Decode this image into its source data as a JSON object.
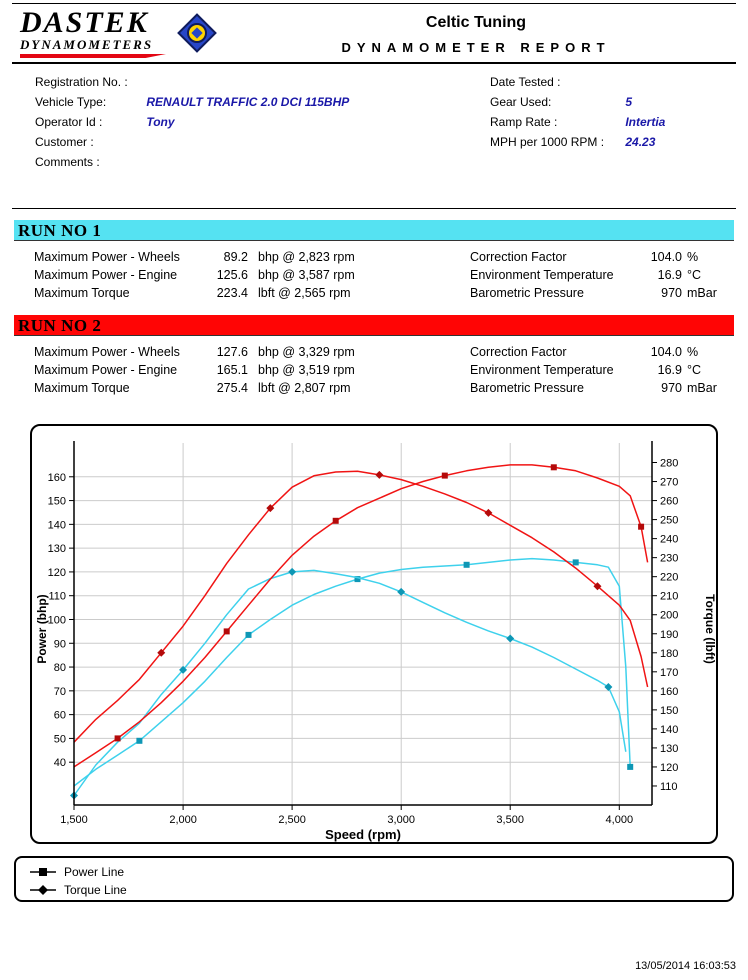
{
  "header": {
    "logo_text": "DASTEK",
    "logo_subtext": "DYNAMOMETERS",
    "company": "Celtic Tuning",
    "report_title": "DYNAMOMETER REPORT"
  },
  "info": {
    "left": [
      {
        "label": "Registration No. :",
        "value": ""
      },
      {
        "label": "Vehicle Type:",
        "value": "RENAULT TRAFFIC 2.0 DCI 115BHP"
      },
      {
        "label": "Operator Id :",
        "value": "Tony"
      },
      {
        "label": "Customer :",
        "value": ""
      },
      {
        "label": "Comments :",
        "value": ""
      }
    ],
    "right": [
      {
        "label": "Date Tested :",
        "value": ""
      },
      {
        "label": "Gear Used:",
        "value": "5"
      },
      {
        "label": "Ramp Rate :",
        "value": "Intertia"
      },
      {
        "label": "MPH per 1000 RPM :",
        "value": "24.23"
      }
    ]
  },
  "runs": [
    {
      "title": "RUN NO 1",
      "banner_color": "#55e2f2",
      "stats": [
        {
          "label": "Maximum Power - Wheels",
          "value": "89.2",
          "unit": "bhp @ 2,823 rpm"
        },
        {
          "label": "Maximum Power - Engine",
          "value": "125.6",
          "unit": "bhp @ 3,587 rpm"
        },
        {
          "label": "Maximum Torque",
          "value": "223.4",
          "unit": "lbft @ 2,565 rpm"
        }
      ],
      "conditions": [
        {
          "label": "Correction Factor",
          "value": "104.0",
          "unit": "%"
        },
        {
          "label": "Environment Temperature",
          "value": "16.9",
          "unit": "°C"
        },
        {
          "label": "Barometric Pressure",
          "value": "970",
          "unit": "mBar"
        }
      ]
    },
    {
      "title": "RUN NO 2",
      "banner_color": "#ff0505",
      "stats": [
        {
          "label": "Maximum Power - Wheels",
          "value": "127.6",
          "unit": "bhp @ 3,329 rpm"
        },
        {
          "label": "Maximum Power - Engine",
          "value": "165.1",
          "unit": "bhp @ 3,519 rpm"
        },
        {
          "label": "Maximum Torque",
          "value": "275.4",
          "unit": "lbft @ 2,807 rpm"
        }
      ],
      "conditions": [
        {
          "label": "Correction Factor",
          "value": "104.0",
          "unit": "%"
        },
        {
          "label": "Environment Temperature",
          "value": "16.9",
          "unit": "°C"
        },
        {
          "label": "Barometric Pressure",
          "value": "970",
          "unit": "mBar"
        }
      ]
    }
  ],
  "chart_data": {
    "type": "line",
    "xlabel": "Speed (rpm)",
    "ylabel_left": "Power (bhp)",
    "ylabel_right": "Torque (lbft)",
    "grid": true,
    "x_range": [
      1500,
      4150
    ],
    "x_ticks": [
      {
        "v": 1500,
        "label": "1,500"
      },
      {
        "v": 2000,
        "label": "2,000"
      },
      {
        "v": 2500,
        "label": "2,500"
      },
      {
        "v": 3000,
        "label": "3,000"
      },
      {
        "v": 3500,
        "label": "3,500"
      },
      {
        "v": 4000,
        "label": "4,000"
      }
    ],
    "power_axis": {
      "range": [
        22,
        170
      ],
      "ticks": [
        40,
        50,
        60,
        70,
        80,
        90,
        100,
        110,
        120,
        130,
        140,
        150,
        160
      ]
    },
    "torque_axis": {
      "range": [
        100,
        285
      ],
      "ticks": [
        110,
        120,
        130,
        140,
        150,
        160,
        170,
        180,
        190,
        200,
        210,
        220,
        230,
        240,
        250,
        260,
        270,
        280
      ]
    },
    "series": [
      {
        "name": "Run 1 Power",
        "run": 1,
        "quantity": "power",
        "color": "#3ed1ec",
        "marker": "square",
        "marker_color": "#0e97b5",
        "marker_every": 5,
        "marker_offset": 3,
        "points": [
          [
            1500,
            30
          ],
          [
            1600,
            37
          ],
          [
            1700,
            43
          ],
          [
            1800,
            49
          ],
          [
            1900,
            57
          ],
          [
            2000,
            65
          ],
          [
            2100,
            74
          ],
          [
            2200,
            84
          ],
          [
            2300,
            93.5
          ],
          [
            2400,
            100
          ],
          [
            2500,
            106
          ],
          [
            2600,
            110.5
          ],
          [
            2700,
            114
          ],
          [
            2800,
            117
          ],
          [
            2900,
            119.5
          ],
          [
            3000,
            121
          ],
          [
            3100,
            122
          ],
          [
            3200,
            122.5
          ],
          [
            3300,
            123
          ],
          [
            3400,
            124
          ],
          [
            3500,
            125
          ],
          [
            3600,
            125.6
          ],
          [
            3700,
            125
          ],
          [
            3800,
            124
          ],
          [
            3900,
            123
          ],
          [
            3950,
            122
          ],
          [
            4000,
            114
          ],
          [
            4030,
            80
          ],
          [
            4050,
            38
          ]
        ]
      },
      {
        "name": "Run 1 Torque",
        "run": 1,
        "quantity": "torque",
        "color": "#3ed1ec",
        "marker": "diamond",
        "marker_color": "#0e97b5",
        "marker_every": 5,
        "marker_offset": 0,
        "points": [
          [
            1500,
            105
          ],
          [
            1600,
            121
          ],
          [
            1700,
            133
          ],
          [
            1800,
            143
          ],
          [
            1900,
            158
          ],
          [
            2000,
            171
          ],
          [
            2100,
            185
          ],
          [
            2200,
            200
          ],
          [
            2300,
            213.5
          ],
          [
            2400,
            219
          ],
          [
            2500,
            222.5
          ],
          [
            2600,
            223.3
          ],
          [
            2700,
            221.5
          ],
          [
            2800,
            219.5
          ],
          [
            2900,
            216.5
          ],
          [
            3000,
            212
          ],
          [
            3100,
            206.5
          ],
          [
            3200,
            201
          ],
          [
            3300,
            196
          ],
          [
            3400,
            191.5
          ],
          [
            3500,
            187.5
          ],
          [
            3600,
            183
          ],
          [
            3700,
            177.5
          ],
          [
            3800,
            171.5
          ],
          [
            3900,
            165.5
          ],
          [
            3950,
            162
          ],
          [
            4000,
            149
          ],
          [
            4030,
            128
          ]
        ]
      },
      {
        "name": "Run 2 Power",
        "run": 2,
        "quantity": "power",
        "color": "#f01414",
        "marker": "square",
        "marker_color": "#b40a0a",
        "marker_every": 5,
        "marker_offset": 2,
        "points": [
          [
            1500,
            38
          ],
          [
            1600,
            44
          ],
          [
            1700,
            50
          ],
          [
            1800,
            57
          ],
          [
            1900,
            65
          ],
          [
            2000,
            74
          ],
          [
            2100,
            84
          ],
          [
            2200,
            95
          ],
          [
            2300,
            106
          ],
          [
            2400,
            117
          ],
          [
            2500,
            127
          ],
          [
            2600,
            135
          ],
          [
            2700,
            141.5
          ],
          [
            2800,
            147
          ],
          [
            2900,
            151
          ],
          [
            3000,
            155
          ],
          [
            3100,
            158
          ],
          [
            3200,
            160.5
          ],
          [
            3300,
            162.5
          ],
          [
            3400,
            164
          ],
          [
            3500,
            165
          ],
          [
            3600,
            165
          ],
          [
            3700,
            164
          ],
          [
            3800,
            162.5
          ],
          [
            3900,
            159.5
          ],
          [
            4000,
            156
          ],
          [
            4050,
            152
          ],
          [
            4100,
            139
          ],
          [
            4130,
            124
          ]
        ]
      },
      {
        "name": "Run 2 Torque",
        "run": 2,
        "quantity": "torque",
        "color": "#f01414",
        "marker": "diamond",
        "marker_color": "#b40a0a",
        "marker_every": 5,
        "marker_offset": 4,
        "points": [
          [
            1500,
            133
          ],
          [
            1600,
            145
          ],
          [
            1700,
            155
          ],
          [
            1800,
            166
          ],
          [
            1900,
            180
          ],
          [
            2000,
            194
          ],
          [
            2100,
            210
          ],
          [
            2200,
            227
          ],
          [
            2300,
            242
          ],
          [
            2400,
            256
          ],
          [
            2500,
            267
          ],
          [
            2600,
            273
          ],
          [
            2700,
            275
          ],
          [
            2800,
            275.4
          ],
          [
            2900,
            273.5
          ],
          [
            3000,
            271
          ],
          [
            3100,
            267.5
          ],
          [
            3200,
            263.5
          ],
          [
            3300,
            259
          ],
          [
            3400,
            253.5
          ],
          [
            3500,
            247
          ],
          [
            3600,
            240.5
          ],
          [
            3700,
            233
          ],
          [
            3800,
            224.5
          ],
          [
            3900,
            215
          ],
          [
            4000,
            205
          ],
          [
            4050,
            197
          ],
          [
            4100,
            178
          ],
          [
            4130,
            162
          ]
        ]
      }
    ]
  },
  "legend": {
    "items": [
      {
        "label": "Power Line",
        "marker": "square"
      },
      {
        "label": "Torque Line",
        "marker": "diamond"
      }
    ]
  },
  "footer": {
    "timestamp": "13/05/2014 16:03:53"
  }
}
